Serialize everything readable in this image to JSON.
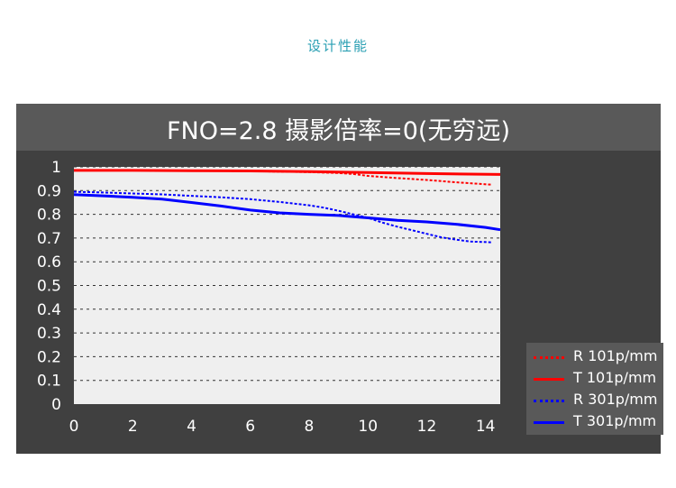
{
  "page": {
    "heading": "设计性能"
  },
  "colors": {
    "heading": "#2a9fb3",
    "panel": "#404040",
    "title_bar": "#595959",
    "plot_bg": "#efefef",
    "red": "#ff0000",
    "blue": "#0000ff"
  },
  "chart_data": {
    "type": "line",
    "title": "FNO=2.8 摄影倍率=0(无穷远)",
    "xlabel": "",
    "ylabel": "",
    "xlim": [
      0,
      14.5
    ],
    "ylim": [
      0,
      1
    ],
    "x_ticks": [
      "0",
      "2",
      "4",
      "6",
      "8",
      "10",
      "12",
      "14"
    ],
    "y_ticks": [
      "0",
      "0.1",
      "0.2",
      "0.3",
      "0.4",
      "0.5",
      "0.6",
      "0.7",
      "0.8",
      "0.9",
      "1"
    ],
    "grid": "horizontal dashed",
    "legend_position": "right",
    "series": [
      {
        "name": "R 101p/mm",
        "color": "#ff0000",
        "style": "dashed",
        "x": [
          0,
          1,
          2,
          3,
          4,
          5,
          6,
          7,
          8,
          9,
          9.5,
          10,
          11,
          12,
          13,
          14.2
        ],
        "y": [
          0.985,
          0.985,
          0.985,
          0.985,
          0.984,
          0.983,
          0.982,
          0.98,
          0.978,
          0.974,
          0.97,
          0.962,
          0.953,
          0.945,
          0.935,
          0.925
        ]
      },
      {
        "name": "T 101p/mm",
        "color": "#ff0000",
        "style": "solid",
        "x": [
          0,
          2,
          4,
          6,
          8,
          10,
          12,
          14.5
        ],
        "y": [
          0.985,
          0.985,
          0.984,
          0.983,
          0.98,
          0.976,
          0.972,
          0.968
        ]
      },
      {
        "name": "R 301p/mm",
        "color": "#0000ff",
        "style": "dashed",
        "x": [
          0,
          1,
          2,
          3,
          4,
          5,
          6,
          7,
          8,
          8.5,
          9,
          9.5,
          10,
          10.5,
          11,
          11.5,
          12,
          12.5,
          13,
          13.5,
          14.2
        ],
        "y": [
          0.895,
          0.892,
          0.888,
          0.884,
          0.878,
          0.872,
          0.864,
          0.852,
          0.838,
          0.828,
          0.815,
          0.8,
          0.785,
          0.765,
          0.748,
          0.733,
          0.718,
          0.703,
          0.693,
          0.685,
          0.682
        ]
      },
      {
        "name": "T 301p/mm",
        "color": "#0000ff",
        "style": "solid",
        "x": [
          0,
          1,
          2,
          3,
          4,
          5,
          6,
          7,
          8,
          9,
          10,
          11,
          12,
          13,
          14,
          14.5
        ],
        "y": [
          0.883,
          0.878,
          0.872,
          0.864,
          0.85,
          0.835,
          0.818,
          0.806,
          0.8,
          0.795,
          0.785,
          0.775,
          0.768,
          0.758,
          0.745,
          0.735
        ]
      }
    ]
  }
}
